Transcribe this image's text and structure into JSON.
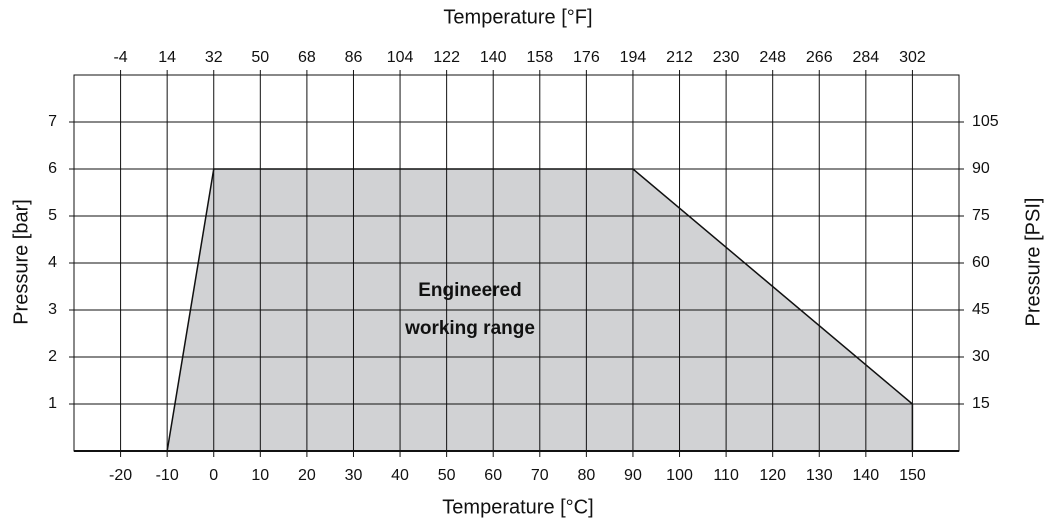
{
  "chart_data": {
    "type": "area",
    "x_label": "Temperature [°C]",
    "x2_label": "Temperature [°F]",
    "y_label": "Pressure [bar]",
    "y2_label": "Pressure [PSI]",
    "annotation": [
      "Engineered",
      "working range"
    ],
    "xlim": [
      -30,
      160
    ],
    "xticks": [
      -20,
      -10,
      0,
      10,
      20,
      30,
      40,
      50,
      60,
      70,
      80,
      90,
      100,
      110,
      120,
      130,
      140,
      150
    ],
    "x2lim": [
      -22,
      320
    ],
    "x2ticks": [
      -4,
      14,
      32,
      50,
      68,
      86,
      104,
      122,
      140,
      158,
      176,
      194,
      212,
      230,
      248,
      266,
      284,
      302
    ],
    "ylim": [
      0,
      8
    ],
    "yticks": [
      1,
      2,
      3,
      4,
      5,
      6,
      7
    ],
    "y2lim": [
      0,
      120
    ],
    "y2ticks": [
      15,
      30,
      45,
      60,
      75,
      90,
      105
    ],
    "grid": true,
    "series": [
      {
        "color": "#d1d2d4",
        "x": [
          -10,
          0,
          90,
          150,
          150
        ],
        "values": [
          0,
          6,
          6,
          1,
          0
        ]
      }
    ]
  }
}
